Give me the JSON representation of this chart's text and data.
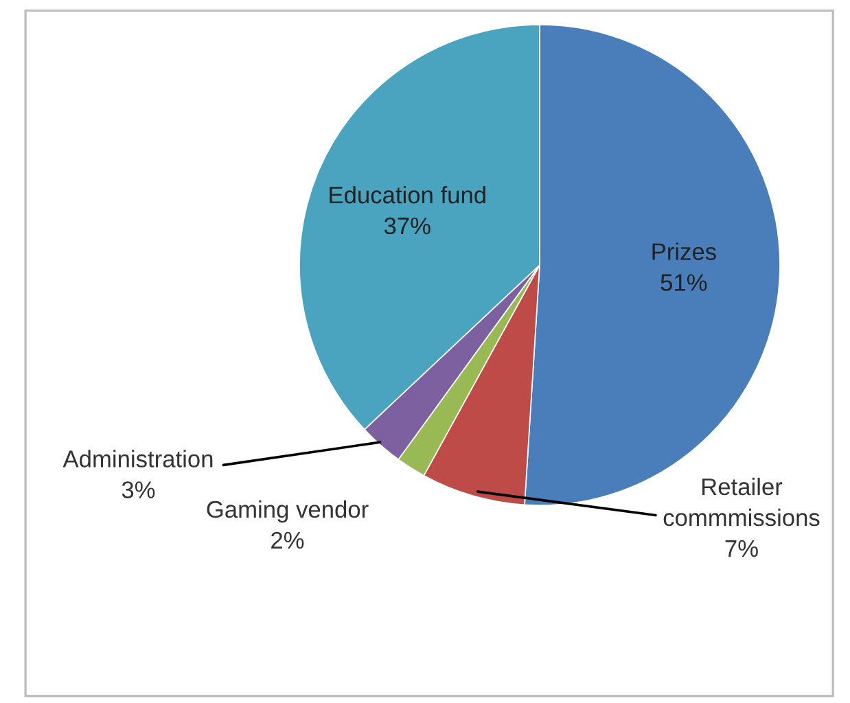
{
  "chart_data": {
    "type": "pie",
    "categories": [
      "Prizes",
      "Retailer commmissions",
      "Gaming vendor",
      "Administration",
      "Education fund"
    ],
    "values": [
      51,
      7,
      2,
      3,
      37
    ],
    "value_labels": [
      "51%",
      "7%",
      "2%",
      "3%",
      "37%"
    ],
    "colors": [
      "#4a7ebb",
      "#be4b48",
      "#98b954",
      "#7d60a0",
      "#4aa3bf"
    ],
    "legend": false
  }
}
